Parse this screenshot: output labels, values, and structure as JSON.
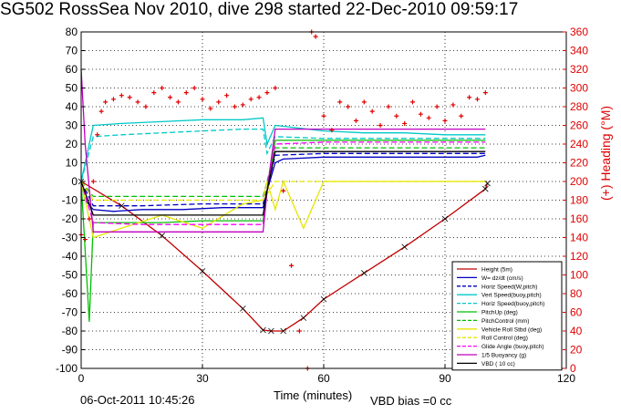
{
  "title": "SG502 RossSea Nov 2010, dive 298 started 22-Dec-2010 09:59:17",
  "footer": {
    "date": "06-Oct-2011 10:45:26",
    "vbd_bias": "VBD bias =0 cc"
  },
  "chart_data": {
    "type": "line",
    "xlabel": "Time (minutes)",
    "ylabel": "",
    "y2label": "(+) Heading (°M)",
    "xlim": [
      0,
      120
    ],
    "ylim": [
      -100,
      80
    ],
    "y2lim": [
      0,
      360
    ],
    "xticks": [
      0,
      30,
      60,
      90,
      120
    ],
    "yticks": [
      -100,
      -90,
      -80,
      -70,
      -60,
      -50,
      -40,
      -30,
      -20,
      -10,
      0,
      10,
      20,
      30,
      40,
      50,
      60,
      70,
      80
    ],
    "y2ticks": [
      0,
      20,
      40,
      60,
      80,
      100,
      120,
      140,
      160,
      180,
      200,
      220,
      240,
      260,
      280,
      300,
      320,
      340,
      360
    ],
    "grid": true,
    "legend_position": "bottom-right",
    "series": [
      {
        "name": "Height (5m)",
        "color": "#c00000",
        "style": "solid",
        "x": [
          0,
          10,
          20,
          30,
          40,
          45,
          47,
          50,
          55,
          60,
          70,
          80,
          90,
          100,
          100.5
        ],
        "y": [
          0,
          -13,
          -29,
          -48,
          -68,
          -79.5,
          -80,
          -80,
          -73,
          -63,
          -49,
          -35,
          -20,
          -4,
          -1
        ]
      },
      {
        "name": "W= dz/dt (cm/s)",
        "color": "#0000c0",
        "style": "solid",
        "x": [
          0,
          1,
          3,
          8,
          15,
          25,
          35,
          45,
          46,
          48,
          50,
          60,
          70,
          80,
          90,
          98,
          100
        ],
        "y": [
          0,
          -10,
          -15,
          -16,
          -15,
          -15,
          -14,
          -14,
          -5,
          10,
          12,
          13,
          13,
          13,
          13,
          13,
          14
        ]
      },
      {
        "name": "Horiz Speed(W,pitch)",
        "color": "#0000c0",
        "style": "dashed",
        "x": [
          0,
          3,
          15,
          30,
          45,
          46,
          48,
          60,
          80,
          100
        ],
        "y": [
          0,
          -13,
          -13,
          -12,
          -12,
          -4,
          14,
          15,
          15,
          15
        ]
      },
      {
        "name": "Vert Speed(buoy,pitch)",
        "color": "#00c8c8",
        "style": "solid",
        "x": [
          0,
          3,
          10,
          20,
          30,
          40,
          45,
          46,
          48,
          60,
          70,
          80,
          90,
          100
        ],
        "y": [
          0,
          30,
          31,
          32,
          33,
          33,
          34,
          20,
          30,
          27,
          26,
          26,
          25,
          25
        ]
      },
      {
        "name": "Horiz Speed(buoy,pitch)",
        "color": "#00c8c8",
        "style": "dashed",
        "x": [
          0,
          3,
          10,
          20,
          30,
          40,
          45,
          46,
          48,
          60,
          80,
          100
        ],
        "y": [
          0,
          24,
          25,
          26,
          27,
          28,
          28,
          15,
          24,
          23,
          23,
          23
        ]
      },
      {
        "name": "PitchUp (deg)",
        "color": "#00c000",
        "style": "solid",
        "x": [
          0,
          2,
          3,
          10,
          20,
          30,
          40,
          45,
          46,
          48,
          60,
          80,
          100
        ],
        "y": [
          0,
          -75,
          -22,
          -22,
          -22,
          -21,
          -21,
          -21,
          -5,
          22,
          22,
          22,
          22
        ]
      },
      {
        "name": "PitchControl (mm)",
        "color": "#00c000",
        "style": "dashed",
        "x": [
          0,
          3,
          10,
          20,
          30,
          40,
          45,
          46,
          48,
          60,
          80,
          100
        ],
        "y": [
          0,
          -8,
          -8,
          -8,
          -8,
          -8,
          -8,
          0,
          18,
          18,
          18,
          18
        ]
      },
      {
        "name": "Vehicle Roll Stbd (deg)",
        "color": "#e6e600",
        "style": "solid",
        "x": [
          0,
          3,
          10,
          20,
          30,
          40,
          45,
          46,
          48,
          50,
          55,
          60,
          70,
          80,
          90,
          100
        ],
        "y": [
          0,
          -30,
          -25,
          -18,
          -25,
          -12,
          -10,
          0,
          -15,
          0,
          -25,
          0,
          0,
          0,
          0,
          0
        ]
      },
      {
        "name": "Roll Control (deg)",
        "color": "#e6e600",
        "style": "dashed",
        "x": [
          0,
          3,
          30,
          45,
          48,
          60,
          100
        ],
        "y": [
          0,
          -10,
          -10,
          -10,
          0,
          0,
          0
        ]
      },
      {
        "name": "Glide Angle (buoy,pitch)",
        "color": "#ff00ff",
        "style": "dashed",
        "x": [
          0,
          3,
          15,
          30,
          45,
          46,
          48,
          60,
          80,
          100
        ],
        "y": [
          0,
          -22,
          -23,
          -23,
          -23,
          -5,
          20,
          21,
          21,
          21
        ]
      },
      {
        "name": "1/5 Buoyancy (g)",
        "color": "#c000c0",
        "style": "solid",
        "x": [
          0,
          1,
          3,
          20,
          40,
          45,
          46,
          48,
          60,
          80,
          100
        ],
        "y": [
          60,
          20,
          -27,
          -27,
          -27,
          -27,
          -5,
          28,
          28,
          28,
          28
        ]
      },
      {
        "name": "VBD ( 10 cc)",
        "color": "#000000",
        "style": "solid",
        "x": [
          0,
          3,
          30,
          45,
          46,
          48,
          60,
          80,
          100
        ],
        "y": [
          0,
          -18,
          -18,
          -18,
          -5,
          16,
          16,
          16,
          16
        ]
      },
      {
        "name": "Heading",
        "color": "#e00000",
        "style": "plus",
        "axis": "y2",
        "x": [
          0,
          1,
          2,
          3,
          4,
          5,
          6,
          8,
          10,
          12,
          14,
          16,
          18,
          20,
          22,
          24,
          26,
          28,
          30,
          32,
          34,
          36,
          38,
          40,
          42,
          44,
          46,
          48,
          50,
          52,
          54,
          56,
          57,
          58,
          60,
          62,
          64,
          66,
          68,
          70,
          72,
          74,
          76,
          78,
          80,
          82,
          84,
          86,
          88,
          90,
          92,
          94,
          96,
          98,
          100
        ],
        "y": [
          143,
          138,
          160,
          200,
          250,
          275,
          285,
          288,
          292,
          290,
          285,
          280,
          295,
          300,
          290,
          285,
          295,
          300,
          288,
          278,
          285,
          292,
          280,
          282,
          288,
          290,
          295,
          300,
          190,
          110,
          40,
          0,
          370,
          355,
          270,
          255,
          285,
          280,
          265,
          285,
          275,
          260,
          280,
          270,
          262,
          285,
          272,
          268,
          280,
          265,
          282,
          270,
          290,
          288,
          295
        ]
      }
    ]
  }
}
